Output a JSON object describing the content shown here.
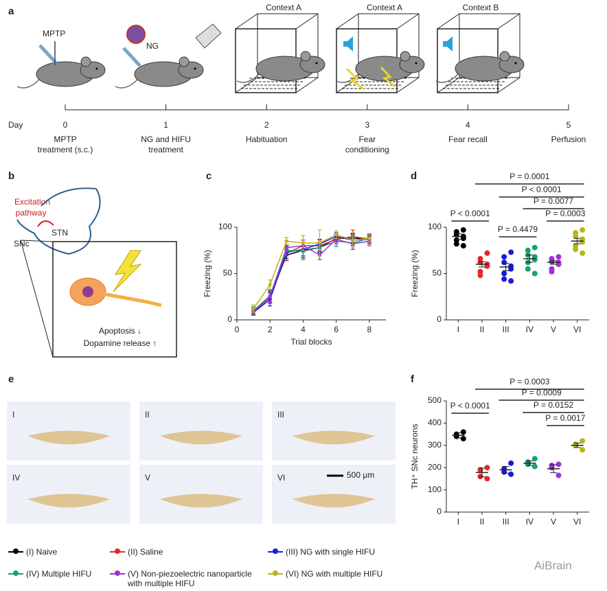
{
  "panel_labels": [
    "a",
    "b",
    "c",
    "d",
    "e",
    "f"
  ],
  "panel_a": {
    "contexts": [
      "Context A",
      "Context A",
      "Context B"
    ],
    "injections": [
      "MPTP",
      "NG"
    ],
    "day_label": "Day",
    "days": [
      0,
      1,
      2,
      3,
      4,
      5
    ],
    "events": [
      [
        "MPTP",
        "treatment (s.c.)"
      ],
      [
        "NG and HIFU",
        "treatment"
      ],
      [
        "Habituation"
      ],
      [
        "Fear",
        "conditioning"
      ],
      [
        "Fear recall"
      ],
      [
        "Perfusion"
      ]
    ]
  },
  "panel_b": {
    "pathway": [
      "Excitation",
      "pathway"
    ],
    "regions": [
      "STN",
      "SNc"
    ],
    "effects": [
      "Apoptosis ↓",
      "Dopamine release ↑"
    ]
  },
  "panel_e": {
    "sections": [
      "I",
      "II",
      "III",
      "IV",
      "V",
      "VI"
    ],
    "scale_bar": "500 μm"
  },
  "watermark": "AiBrain",
  "chart_data": [
    {
      "type": "line",
      "y_label": "Freezing (%)",
      "x_label": "Trial blocks",
      "x": [
        1,
        2,
        3,
        4,
        5,
        6,
        7,
        8
      ],
      "xlim": [
        0,
        9
      ],
      "xticks": [
        0,
        2,
        4,
        6,
        8
      ],
      "ylim": [
        0,
        100
      ],
      "yticks": [
        0,
        50,
        100
      ],
      "series": [
        {
          "name": "(I) Naive",
          "color": "#000000",
          "values": [
            10,
            25,
            70,
            75,
            78,
            88,
            88,
            88
          ],
          "errors": [
            4,
            7,
            6,
            8,
            5,
            4,
            5,
            4
          ]
        },
        {
          "name": "(II) Saline",
          "color": "#e8262a",
          "values": [
            9,
            24,
            72,
            80,
            80,
            87,
            90,
            87
          ],
          "errors": [
            4,
            6,
            8,
            6,
            6,
            5,
            7,
            5
          ]
        },
        {
          "name": "(III) NG with single HIFU",
          "color": "#1a1adb",
          "values": [
            8,
            22,
            73,
            76,
            82,
            90,
            86,
            87
          ],
          "errors": [
            3,
            7,
            7,
            7,
            5,
            4,
            6,
            4
          ]
        },
        {
          "name": "(IV) Multiple HIFU",
          "color": "#19a06e",
          "values": [
            10,
            26,
            75,
            74,
            78,
            85,
            83,
            88
          ],
          "errors": [
            4,
            6,
            6,
            9,
            6,
            6,
            7,
            5
          ]
        },
        {
          "name": "(V) Non-piezoelectric nanoparticle with multiple HIFU",
          "color": "#a12fd9",
          "values": [
            9,
            25,
            78,
            80,
            70,
            87,
            82,
            85
          ],
          "errors": [
            4,
            6,
            7,
            6,
            5,
            5,
            6,
            5
          ]
        },
        {
          "name": "(VI) NG with multiple HIFU",
          "color": "#b8b516",
          "values": [
            12,
            38,
            85,
            83,
            83,
            92,
            86,
            88
          ],
          "errors": [
            4,
            5,
            4,
            8,
            14,
            4,
            8,
            4
          ]
        }
      ]
    },
    {
      "type": "dot",
      "y_label": "Freezing (%)",
      "categories": [
        "I",
        "II",
        "III",
        "IV",
        "V",
        "VI"
      ],
      "ylim": [
        0,
        100
      ],
      "yticks": [
        0,
        50,
        100
      ],
      "groups": [
        {
          "color": "#000000",
          "points": [
            97,
            95,
            92,
            90,
            88,
            86,
            82,
            80
          ],
          "mean": 90,
          "sem": 3
        },
        {
          "color": "#e8262a",
          "points": [
            72,
            66,
            62,
            60,
            58,
            52,
            48
          ],
          "mean": 60,
          "sem": 3
        },
        {
          "color": "#1a1adb",
          "points": [
            73,
            68,
            62,
            58,
            55,
            50,
            44,
            42
          ],
          "mean": 57,
          "sem": 4
        },
        {
          "color": "#19a06e",
          "points": [
            78,
            75,
            70,
            68,
            65,
            62,
            55,
            50
          ],
          "mean": 66,
          "sem": 4
        },
        {
          "color": "#a12fd9",
          "points": [
            68,
            66,
            63,
            62,
            60,
            55,
            52
          ],
          "mean": 62,
          "sem": 2
        },
        {
          "color": "#b8b516",
          "points": [
            97,
            94,
            90,
            87,
            84,
            80,
            76,
            72
          ],
          "mean": 85,
          "sem": 3
        }
      ],
      "annotations": [
        {
          "label": "P = 0.0001",
          "between": [
            "II",
            "VI"
          ]
        },
        {
          "label": "P < 0.0001",
          "between": [
            "III",
            "VI"
          ]
        },
        {
          "label": "P = 0.0077",
          "between": [
            "IV",
            "VI"
          ]
        },
        {
          "label": "P = 0.0003",
          "between": [
            "V",
            "VI"
          ]
        },
        {
          "label": "P < 0.0001",
          "between": [
            "I",
            "II"
          ]
        },
        {
          "label": "P = 0.4479",
          "between": [
            "III",
            "IV"
          ]
        }
      ]
    },
    {
      "type": "dot",
      "y_label": "TH⁺ SNc neurons",
      "categories": [
        "I",
        "II",
        "III",
        "IV",
        "V",
        "VI"
      ],
      "ylim": [
        0,
        500
      ],
      "yticks": [
        0,
        100,
        200,
        300,
        400,
        500
      ],
      "groups": [
        {
          "color": "#000000",
          "points": [
            360,
            350,
            340,
            330
          ],
          "mean": 345,
          "sem": 12
        },
        {
          "color": "#e8262a",
          "points": [
            200,
            190,
            160,
            150
          ],
          "mean": 178,
          "sem": 20
        },
        {
          "color": "#1a1adb",
          "points": [
            220,
            195,
            180,
            170
          ],
          "mean": 190,
          "sem": 15
        },
        {
          "color": "#19a06e",
          "points": [
            240,
            225,
            215,
            205
          ],
          "mean": 220,
          "sem": 10
        },
        {
          "color": "#a12fd9",
          "points": [
            215,
            210,
            200,
            165
          ],
          "mean": 195,
          "sem": 18
        },
        {
          "color": "#b8b516",
          "points": [
            320,
            305,
            300,
            280
          ],
          "mean": 300,
          "sem": 10
        }
      ],
      "annotations": [
        {
          "label": "P = 0.0003",
          "between": [
            "II",
            "VI"
          ]
        },
        {
          "label": "P = 0.0009",
          "between": [
            "III",
            "VI"
          ]
        },
        {
          "label": "P = 0.0152",
          "between": [
            "IV",
            "VI"
          ]
        },
        {
          "label": "P = 0.0017",
          "between": [
            "V",
            "VI"
          ]
        },
        {
          "label": "P < 0.0001",
          "between": [
            "I",
            "II"
          ]
        }
      ]
    }
  ]
}
